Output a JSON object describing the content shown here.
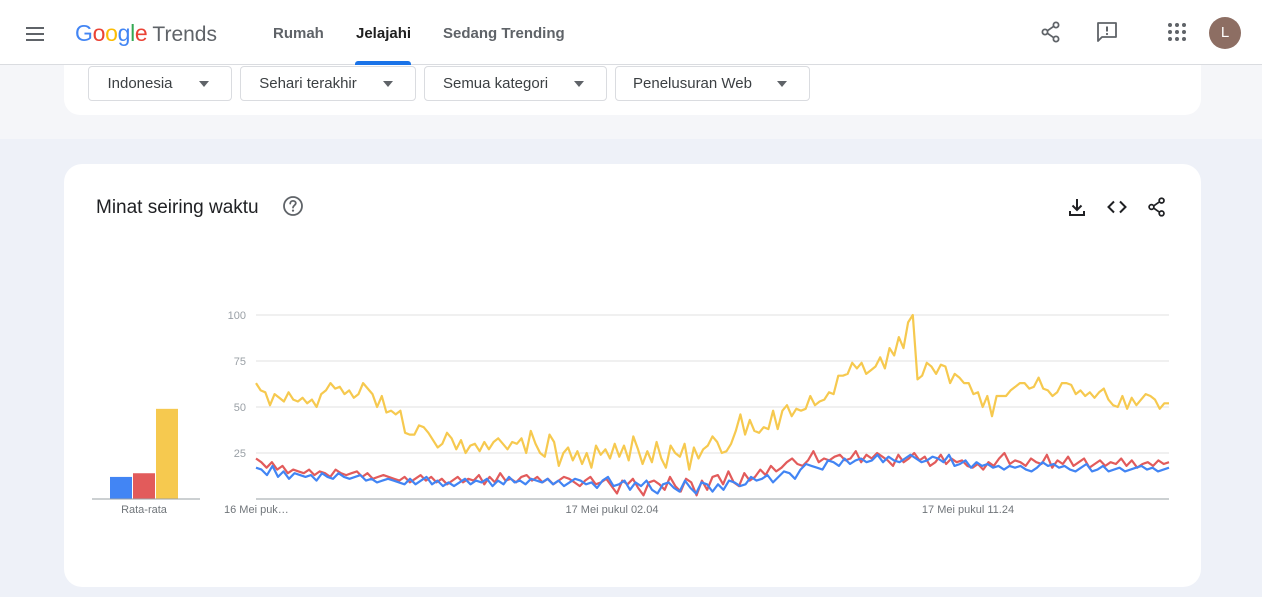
{
  "header": {
    "logo_google": "Google",
    "logo_trends": "Trends",
    "tabs": [
      {
        "label": "Rumah"
      },
      {
        "label": "Jelajahi"
      },
      {
        "label": "Sedang Trending"
      }
    ],
    "avatar_letter": "L",
    "icons": [
      "share-icon",
      "feedback-icon",
      "apps-icon"
    ]
  },
  "filters": [
    {
      "label": "Indonesia"
    },
    {
      "label": "Sehari terakhir"
    },
    {
      "label": "Semua kategori"
    },
    {
      "label": "Penelusuran Web"
    }
  ],
  "card": {
    "title": "Minat seiring waktu",
    "icons": [
      "help-icon",
      "download-icon",
      "embed-icon",
      "share-icon"
    ]
  },
  "colors": {
    "blue": "#4285f4",
    "red": "#e25b5b",
    "yellow": "#f6c94f",
    "grid": "#e0e0e0"
  },
  "chart_data": {
    "type": "line",
    "y_ticks": [
      "100",
      "75",
      "50",
      "25"
    ],
    "ylim": [
      0,
      100
    ],
    "x_tick_labels": [
      "16 Mei puk…",
      "17 Mei pukul 02.04",
      "17 Mei pukul 11.24"
    ],
    "average_label": "Rata-rata",
    "averages": [
      12,
      14,
      49
    ],
    "series": [
      {
        "color": "#f6c94f",
        "values": [
          63,
          59,
          58,
          51,
          57,
          55,
          53,
          58,
          54,
          53,
          55,
          52,
          54,
          50,
          57,
          59,
          63,
          60,
          61,
          57,
          59,
          55,
          57,
          63,
          60,
          57,
          50,
          56,
          47,
          48,
          46,
          48,
          36,
          35,
          35,
          40,
          39,
          36,
          32,
          28,
          30,
          36,
          33,
          27,
          32,
          25,
          29,
          30,
          26,
          31,
          27,
          31,
          33,
          30,
          27,
          31,
          30,
          33,
          25,
          37,
          30,
          25,
          23,
          35,
          31,
          18,
          25,
          28,
          21,
          26,
          19,
          25,
          17,
          29,
          24,
          27,
          22,
          30,
          23,
          29,
          21,
          34,
          27,
          19,
          26,
          20,
          31,
          22,
          17,
          29,
          25,
          23,
          30,
          16,
          28,
          22,
          27,
          29,
          34,
          31,
          25,
          26,
          30,
          37,
          46,
          35,
          43,
          37,
          36,
          39,
          38,
          48,
          38,
          48,
          51,
          45,
          49,
          48,
          49,
          56,
          51,
          53,
          54,
          58,
          57,
          67,
          67,
          68,
          74,
          71,
          74,
          68,
          70,
          72,
          77,
          71,
          82,
          78,
          88,
          82,
          96,
          100,
          65,
          67,
          74,
          72,
          68,
          73,
          72,
          63,
          68,
          66,
          63,
          63,
          57,
          58,
          50,
          56,
          45,
          56,
          56,
          56,
          59,
          61,
          63,
          63,
          60,
          61,
          66,
          60,
          59,
          56,
          58,
          63,
          63,
          62,
          57,
          59,
          56,
          58,
          55,
          58,
          60,
          54,
          51,
          50,
          56,
          49,
          55,
          51,
          54,
          57,
          56,
          54,
          49,
          52,
          52
        ]
      },
      {
        "color": "#e25b5b",
        "values": [
          22,
          20,
          17,
          20,
          16,
          18,
          14,
          16,
          15,
          14,
          16,
          13,
          15,
          14,
          12,
          16,
          14,
          13,
          14,
          15,
          12,
          14,
          11,
          12,
          13,
          12,
          11,
          10,
          12,
          9,
          11,
          13,
          10,
          12,
          9,
          11,
          8,
          10,
          12,
          9,
          11,
          10,
          13,
          8,
          12,
          9,
          14,
          10,
          11,
          9,
          12,
          13,
          10,
          12,
          9,
          11,
          8,
          10,
          12,
          11,
          9,
          7,
          10,
          12,
          8,
          9,
          11,
          7,
          3,
          10,
          8,
          11,
          6,
          2,
          9,
          10,
          8,
          5,
          12,
          7,
          4,
          11,
          9,
          2,
          10,
          5,
          12,
          13,
          8,
          15,
          9,
          7,
          14,
          10,
          12,
          16,
          13,
          18,
          15,
          17,
          20,
          22,
          19,
          18,
          21,
          26,
          20,
          22,
          21,
          23,
          24,
          21,
          22,
          26,
          20,
          24,
          22,
          25,
          23,
          21,
          18,
          24,
          20,
          22,
          25,
          21,
          23,
          18,
          20,
          24,
          19,
          22,
          20,
          21,
          18,
          17,
          19,
          16,
          20,
          18,
          22,
          25,
          19,
          21,
          20,
          18,
          22,
          20,
          19,
          24,
          17,
          21,
          19,
          23,
          18,
          20,
          22,
          17,
          19,
          21,
          18,
          20,
          19,
          22,
          18,
          21,
          17,
          19,
          20,
          18,
          21,
          19,
          20
        ]
      },
      {
        "color": "#4285f4",
        "values": [
          17,
          16,
          13,
          18,
          12,
          15,
          11,
          14,
          13,
          12,
          13,
          10,
          14,
          12,
          11,
          14,
          12,
          11,
          12,
          13,
          10,
          11,
          9,
          10,
          11,
          10,
          9,
          8,
          11,
          8,
          10,
          12,
          8,
          10,
          7,
          9,
          7,
          9,
          11,
          8,
          10,
          9,
          11,
          7,
          10,
          8,
          12,
          9,
          10,
          8,
          11,
          10,
          9,
          11,
          8,
          10,
          7,
          9,
          11,
          10,
          8,
          9,
          6,
          10,
          12,
          7,
          8,
          10,
          5,
          9,
          7,
          10,
          5,
          3,
          8,
          9,
          6,
          4,
          10,
          6,
          3,
          9,
          8,
          4,
          8,
          5,
          10,
          9,
          7,
          8,
          12,
          10,
          11,
          13,
          9,
          12,
          15,
          14,
          11,
          16,
          19,
          18,
          17,
          16,
          21,
          20,
          18,
          22,
          19,
          21,
          22,
          20,
          21,
          24,
          20,
          23,
          21,
          20,
          22,
          24,
          22,
          20,
          21,
          23,
          22,
          20,
          24,
          18,
          19,
          21,
          17,
          20,
          18,
          19,
          17,
          18,
          16,
          18,
          17,
          18,
          16,
          15,
          17,
          20,
          18,
          19,
          17,
          18,
          16,
          15,
          17,
          19,
          15,
          16,
          18,
          15,
          16,
          17,
          15,
          16,
          17,
          18,
          16,
          17,
          15,
          16,
          17
        ]
      }
    ]
  }
}
